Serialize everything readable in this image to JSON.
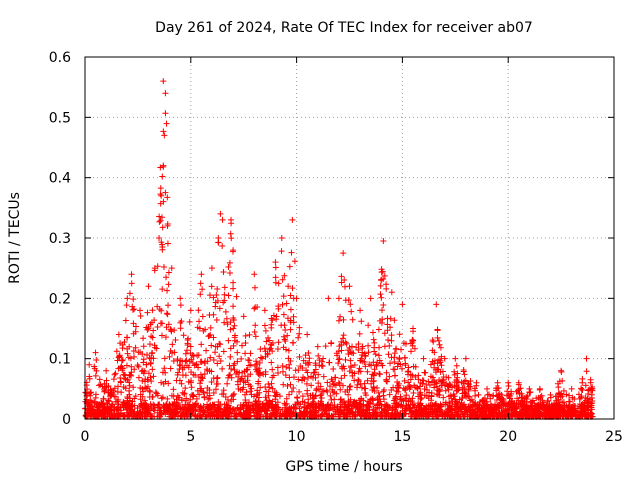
{
  "chart_data": {
    "type": "scatter",
    "title": "Day 261 of 2024, Rate Of TEC Index for receiver ab07",
    "xlabel": "GPS time / hours",
    "ylabel": "ROTI / TECUs",
    "xlim": [
      0,
      25
    ],
    "ylim": [
      0,
      0.6
    ],
    "x_ticks": [
      0,
      5,
      10,
      15,
      20,
      25
    ],
    "y_ticks": [
      0,
      0.1,
      0.2,
      0.3,
      0.4,
      0.5,
      0.6
    ],
    "x_tick_labels": [
      "0",
      "5",
      "10",
      "15",
      "20",
      "25"
    ],
    "y_tick_labels": [
      "0",
      "0.1",
      "0.2",
      "0.3",
      "0.4",
      "0.5",
      "0.6"
    ],
    "grid": true,
    "marker": "plus",
    "color": "#ff0000",
    "series": [
      {
        "name": "ROTI",
        "description_points": [
          [
            0.2,
            0.09
          ],
          [
            0.5,
            0.11
          ],
          [
            1.0,
            0.08
          ],
          [
            1.6,
            0.14
          ],
          [
            2.0,
            0.2
          ],
          [
            2.2,
            0.24
          ],
          [
            2.6,
            0.18
          ],
          [
            3.0,
            0.22
          ],
          [
            3.3,
            0.25
          ],
          [
            3.5,
            0.3
          ],
          [
            3.6,
            0.37
          ],
          [
            3.7,
            0.42
          ],
          [
            3.75,
            0.47
          ],
          [
            3.8,
            0.54
          ],
          [
            3.7,
            0.56
          ],
          [
            3.9,
            0.32
          ],
          [
            4.1,
            0.25
          ],
          [
            4.5,
            0.2
          ],
          [
            5.0,
            0.18
          ],
          [
            5.5,
            0.24
          ],
          [
            6.0,
            0.25
          ],
          [
            6.3,
            0.3
          ],
          [
            6.4,
            0.34
          ],
          [
            6.5,
            0.33
          ],
          [
            6.9,
            0.33
          ],
          [
            7.0,
            0.28
          ],
          [
            7.5,
            0.17
          ],
          [
            8.0,
            0.24
          ],
          [
            8.5,
            0.18
          ],
          [
            9.0,
            0.26
          ],
          [
            9.3,
            0.3
          ],
          [
            9.6,
            0.22
          ],
          [
            9.8,
            0.33
          ],
          [
            10.0,
            0.2
          ],
          [
            10.5,
            0.14
          ],
          [
            11.0,
            0.12
          ],
          [
            11.5,
            0.2
          ],
          [
            12.0,
            0.2
          ],
          [
            12.2,
            0.275
          ],
          [
            12.5,
            0.22
          ],
          [
            13.0,
            0.18
          ],
          [
            13.5,
            0.2
          ],
          [
            14.0,
            0.23
          ],
          [
            14.1,
            0.295
          ],
          [
            14.5,
            0.21
          ],
          [
            15.0,
            0.19
          ],
          [
            15.5,
            0.15
          ],
          [
            16.0,
            0.1
          ],
          [
            16.6,
            0.19
          ],
          [
            17.0,
            0.1
          ],
          [
            17.5,
            0.1
          ],
          [
            18.0,
            0.1
          ],
          [
            18.5,
            0.06
          ],
          [
            19.0,
            0.05
          ],
          [
            19.5,
            0.06
          ],
          [
            20.0,
            0.06
          ],
          [
            20.5,
            0.06
          ],
          [
            21.0,
            0.05
          ],
          [
            21.5,
            0.05
          ],
          [
            22.0,
            0.04
          ],
          [
            22.5,
            0.08
          ],
          [
            23.0,
            0.05
          ],
          [
            23.5,
            0.06
          ],
          [
            23.7,
            0.1
          ],
          [
            23.9,
            0.06
          ]
        ]
      }
    ]
  }
}
